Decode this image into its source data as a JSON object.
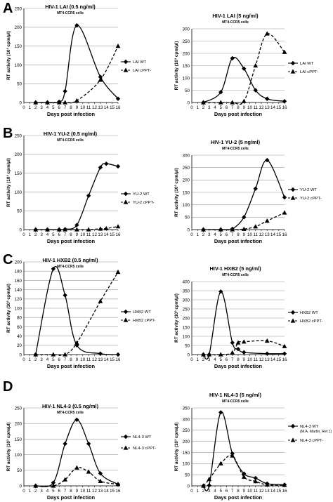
{
  "panel_letters": [
    "A",
    "B",
    "C",
    "D"
  ],
  "chart_data": [
    {
      "type": "line",
      "panel": "A",
      "title": "HIV-1 LAI (0.5 ng/ml)",
      "subtitle": "MT4-CCR5 cells",
      "xlabel": "Days post infection",
      "ylabel": "RT activity (10³ cpm/µl)",
      "x_ticks": [
        0,
        1,
        2,
        3,
        4,
        5,
        6,
        7,
        8,
        9,
        10,
        11,
        12,
        13,
        14,
        15,
        16
      ],
      "ylim": [
        0,
        250
      ],
      "y_ticks": [
        0,
        50,
        100,
        150,
        200,
        250
      ],
      "grid": true,
      "legend_position": "right",
      "series": [
        {
          "name": "LAI WT",
          "style": "solid",
          "marker": "diamond",
          "x": [
            2,
            4,
            6,
            7,
            9,
            13,
            16
          ],
          "y": [
            0,
            0,
            2,
            30,
            205,
            68,
            10
          ]
        },
        {
          "name": "LAI cPPT-",
          "style": "dashed",
          "marker": "triangle",
          "x": [
            2,
            4,
            6,
            7,
            9,
            13,
            16
          ],
          "y": [
            0,
            0,
            0,
            0,
            5,
            60,
            150
          ]
        }
      ]
    },
    {
      "type": "line",
      "panel": "A",
      "title": "HIV-1 LAI (5 ng/ml)",
      "subtitle": "MT4-CCR5 cells",
      "xlabel": "Days post infection",
      "ylabel": "RT activity (10³ cpm/µl)",
      "x_ticks": [
        0,
        1,
        2,
        3,
        4,
        5,
        6,
        7,
        8,
        9,
        10,
        11,
        12,
        13,
        14,
        15,
        16
      ],
      "ylim": [
        0,
        300
      ],
      "y_ticks": [
        0,
        50,
        100,
        150,
        200,
        250,
        300
      ],
      "grid": true,
      "legend_position": "right",
      "series": [
        {
          "name": "LAI WT",
          "style": "solid",
          "marker": "diamond",
          "x": [
            2,
            5,
            7,
            9,
            11,
            13,
            16
          ],
          "y": [
            0,
            42,
            180,
            138,
            50,
            15,
            5
          ]
        },
        {
          "name": "LAI cPPT-",
          "style": "dashed",
          "marker": "triangle",
          "x": [
            2,
            5,
            7,
            9,
            11,
            13,
            16
          ],
          "y": [
            0,
            0,
            0,
            5,
            150,
            280,
            205
          ]
        }
      ]
    },
    {
      "type": "line",
      "panel": "B",
      "title": "HIV-1 YU-2 (0.5 ng/ml)",
      "subtitle": "MT4-CCR5 cells",
      "xlabel": "Days post infection",
      "ylabel": "RT activity (10³ cpm/µl)",
      "x_ticks": [
        0,
        1,
        2,
        3,
        4,
        5,
        6,
        7,
        8,
        9,
        10,
        11,
        12,
        13,
        14,
        15,
        16
      ],
      "ylim": [
        0,
        250
      ],
      "y_ticks": [
        0,
        50,
        100,
        150,
        200,
        250
      ],
      "grid": true,
      "legend_position": "right",
      "series": [
        {
          "name": "YU-2 WT",
          "style": "solid",
          "marker": "diamond",
          "x": [
            2,
            4,
            6,
            7,
            9,
            11,
            13,
            14,
            16
          ],
          "y": [
            0,
            0,
            0,
            1,
            12,
            90,
            165,
            175,
            168
          ]
        },
        {
          "name": "YU-2 cPPT-",
          "style": "dashed",
          "marker": "triangle",
          "x": [
            2,
            4,
            6,
            7,
            9,
            11,
            13,
            14,
            16
          ],
          "y": [
            0,
            0,
            0,
            0,
            0,
            0,
            2,
            3,
            8
          ]
        }
      ]
    },
    {
      "type": "line",
      "panel": "B",
      "title": "HIV-1 YU-2 (5 ng/ml)",
      "subtitle": "MT4-CCR5 cells",
      "xlabel": "Days post infection",
      "ylabel": "RT activity (10³ cpm/µl)",
      "x_ticks": [
        0,
        1,
        2,
        3,
        4,
        5,
        6,
        7,
        8,
        9,
        10,
        11,
        12,
        13,
        14,
        15,
        16
      ],
      "ylim": [
        0,
        300
      ],
      "y_ticks": [
        0,
        50,
        100,
        150,
        200,
        250,
        300
      ],
      "grid": true,
      "legend_position": "right",
      "series": [
        {
          "name": "YU-2 WT",
          "style": "solid",
          "marker": "diamond",
          "x": [
            2,
            5,
            7,
            9,
            11,
            13,
            16
          ],
          "y": [
            0,
            0,
            3,
            50,
            165,
            280,
            130
          ]
        },
        {
          "name": "YU-2 cPPT-",
          "style": "dashed",
          "marker": "triangle",
          "x": [
            2,
            5,
            7,
            9,
            11,
            13,
            16
          ],
          "y": [
            0,
            0,
            0,
            2,
            12,
            35,
            68
          ]
        }
      ]
    },
    {
      "type": "line",
      "panel": "C",
      "title": "HIV-1 HXB2 (0.5 ng/ml)",
      "subtitle": "MT4-CCR5 cells",
      "xlabel": "Days post infection",
      "ylabel": "RT activity (10³ cpm/µl)",
      "x_ticks": [
        0,
        1,
        2,
        3,
        4,
        5,
        6,
        7,
        8,
        9,
        10,
        11,
        12,
        13,
        14,
        15,
        16
      ],
      "ylim": [
        0,
        200
      ],
      "y_ticks": [
        0,
        20,
        40,
        60,
        80,
        100,
        120,
        140,
        160,
        180,
        200
      ],
      "grid": true,
      "legend_position": "right",
      "series": [
        {
          "name": "HXB2 WT",
          "style": "solid",
          "marker": "diamond",
          "x": [
            2,
            5,
            7,
            9,
            13,
            16
          ],
          "y": [
            0,
            185,
            128,
            20,
            2,
            0
          ]
        },
        {
          "name": "HXB2 cPPT-",
          "style": "dashed",
          "marker": "triangle",
          "x": [
            2,
            5,
            7,
            9,
            13,
            16
          ],
          "y": [
            0,
            0,
            0,
            25,
            115,
            178
          ]
        }
      ]
    },
    {
      "type": "line",
      "panel": "C",
      "title": "HIV-1 HXB2 (5 ng/ml)",
      "subtitle": "MT4-CCR5 cells",
      "xlabel": "Days post infection",
      "ylabel": "RT activity (10³ cpm/µl)",
      "x_ticks": [
        0,
        1,
        2,
        3,
        4,
        5,
        6,
        7,
        8,
        9,
        10,
        11,
        12,
        13,
        14,
        15,
        16
      ],
      "ylim": [
        0,
        400
      ],
      "y_ticks": [
        0,
        50,
        100,
        150,
        200,
        250,
        300,
        350,
        400
      ],
      "grid": true,
      "legend_position": "right",
      "series": [
        {
          "name": "HXB2 WT",
          "style": "solid",
          "marker": "diamond",
          "x": [
            2,
            3,
            5,
            7,
            8,
            9,
            13,
            16
          ],
          "y": [
            0,
            0,
            345,
            65,
            30,
            12,
            5,
            5
          ]
        },
        {
          "name": "HXB2 cPPT-",
          "style": "dashed",
          "marker": "triangle",
          "x": [
            2,
            3,
            5,
            7,
            8,
            9,
            13,
            16
          ],
          "y": [
            0,
            0,
            0,
            10,
            65,
            70,
            75,
            45
          ]
        }
      ]
    },
    {
      "type": "line",
      "panel": "D",
      "title": "HIV-1 NL4-3 (0.5 ng/ml)",
      "subtitle": "MT4-CCR5 cells",
      "xlabel": "Days post infection",
      "ylabel": "RT activity (10³ cpm/µl)",
      "x_ticks": [
        0,
        1,
        2,
        3,
        4,
        5,
        6,
        7,
        8,
        9,
        10,
        11,
        12,
        13,
        14,
        15,
        16
      ],
      "ylim": [
        0,
        250
      ],
      "y_ticks": [
        0,
        50,
        100,
        150,
        200,
        250
      ],
      "grid": true,
      "legend_position": "right",
      "series": [
        {
          "name": "NL4-3 WT",
          "style": "solid",
          "marker": "diamond",
          "x": [
            2,
            5,
            7,
            9,
            11,
            13,
            16
          ],
          "y": [
            0,
            10,
            135,
            212,
            135,
            40,
            5
          ]
        },
        {
          "name": "NL4-3 cPPT-",
          "style": "dashed",
          "marker": "triangle",
          "x": [
            2,
            5,
            7,
            9,
            11,
            13,
            16
          ],
          "y": [
            0,
            0,
            20,
            58,
            45,
            15,
            5
          ]
        }
      ]
    },
    {
      "type": "line",
      "panel": "D",
      "title": "HIV-1 NL4-3 (5 ng/ml)",
      "subtitle": "MT4-CCR5 cells",
      "xlabel": "Days post infection",
      "ylabel": "RT activity (10³ cpm/µl)",
      "x_ticks": [
        0,
        1,
        2,
        3,
        4,
        5,
        6,
        7,
        8,
        9,
        10,
        11,
        12,
        13,
        14,
        15,
        16
      ],
      "ylim": [
        0,
        350
      ],
      "y_ticks": [
        0,
        50,
        100,
        150,
        200,
        250,
        300,
        350
      ],
      "grid": true,
      "legend_position": "right",
      "series": [
        {
          "name": "NL4-3 WT",
          "name_note": "(M.A. Martin, Ref.1)",
          "style": "solid",
          "marker": "diamond",
          "x": [
            2,
            3,
            5,
            7,
            9,
            11,
            13,
            16
          ],
          "y": [
            0,
            2,
            330,
            145,
            55,
            35,
            10,
            5
          ]
        },
        {
          "name": "NL4-3 cPPT-",
          "style": "dashed",
          "marker": "triangle",
          "x": [
            2,
            3,
            5,
            7,
            9,
            11,
            13,
            16
          ],
          "y": [
            0,
            30,
            100,
            135,
            40,
            20,
            5,
            3
          ]
        }
      ]
    }
  ]
}
